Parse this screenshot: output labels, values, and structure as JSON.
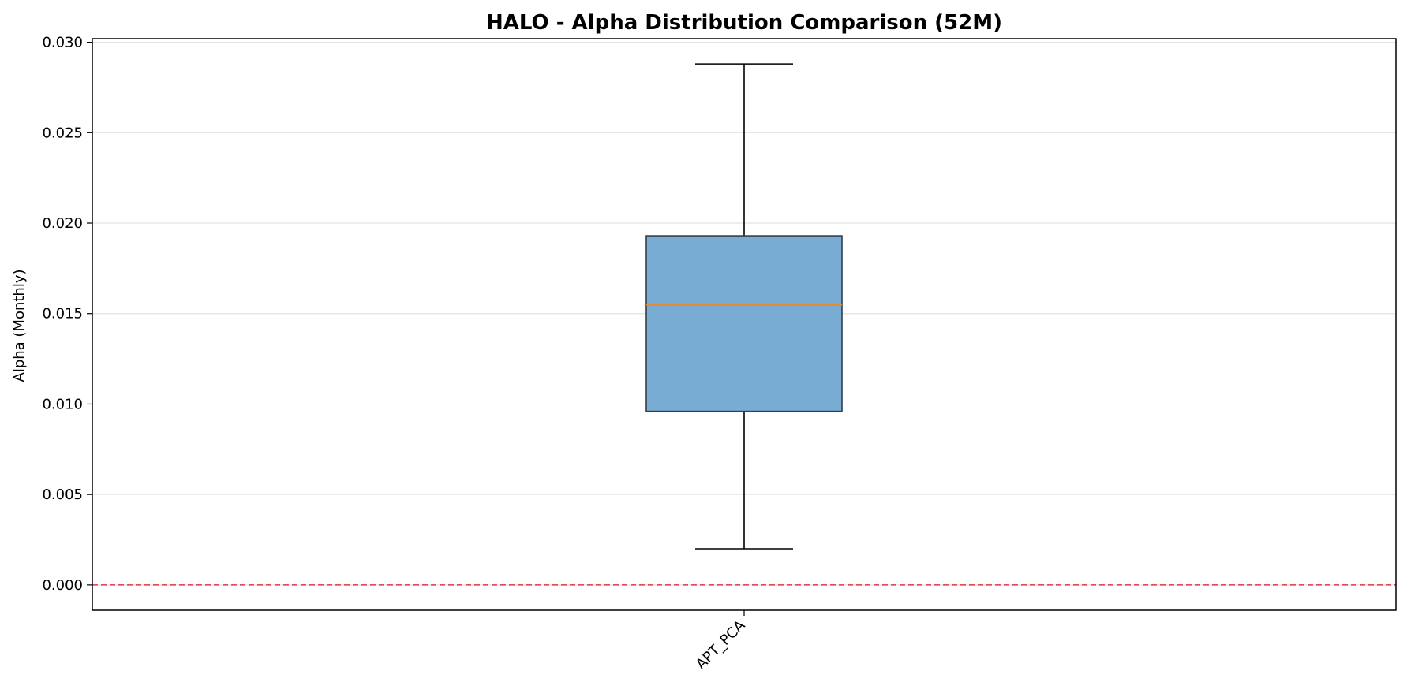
{
  "chart_data": {
    "type": "box",
    "title": "HALO - Alpha Distribution Comparison (52M)",
    "ylabel": "Alpha (Monthly)",
    "xlabel": "",
    "ylim": [
      -0.0014,
      0.0302
    ],
    "yticks": [
      0.0,
      0.005,
      0.01,
      0.015,
      0.02,
      0.025,
      0.03
    ],
    "ytick_labels": [
      "0.000",
      "0.005",
      "0.010",
      "0.015",
      "0.020",
      "0.025",
      "0.030"
    ],
    "grid": "horizontal",
    "reference_line": {
      "y": 0.0,
      "color": "#e8333f",
      "style": "dashed"
    },
    "categories": [
      "APT_PCA"
    ],
    "boxes": [
      {
        "category": "APT_PCA",
        "whisker_low": 0.002,
        "q1": 0.0096,
        "median": 0.0155,
        "q3": 0.0193,
        "whisker_high": 0.0288
      }
    ],
    "colors": {
      "box_fill": "#78acd2",
      "box_edge": "#333f4f",
      "median": "#e58a2e",
      "whisker": "#000000"
    }
  }
}
